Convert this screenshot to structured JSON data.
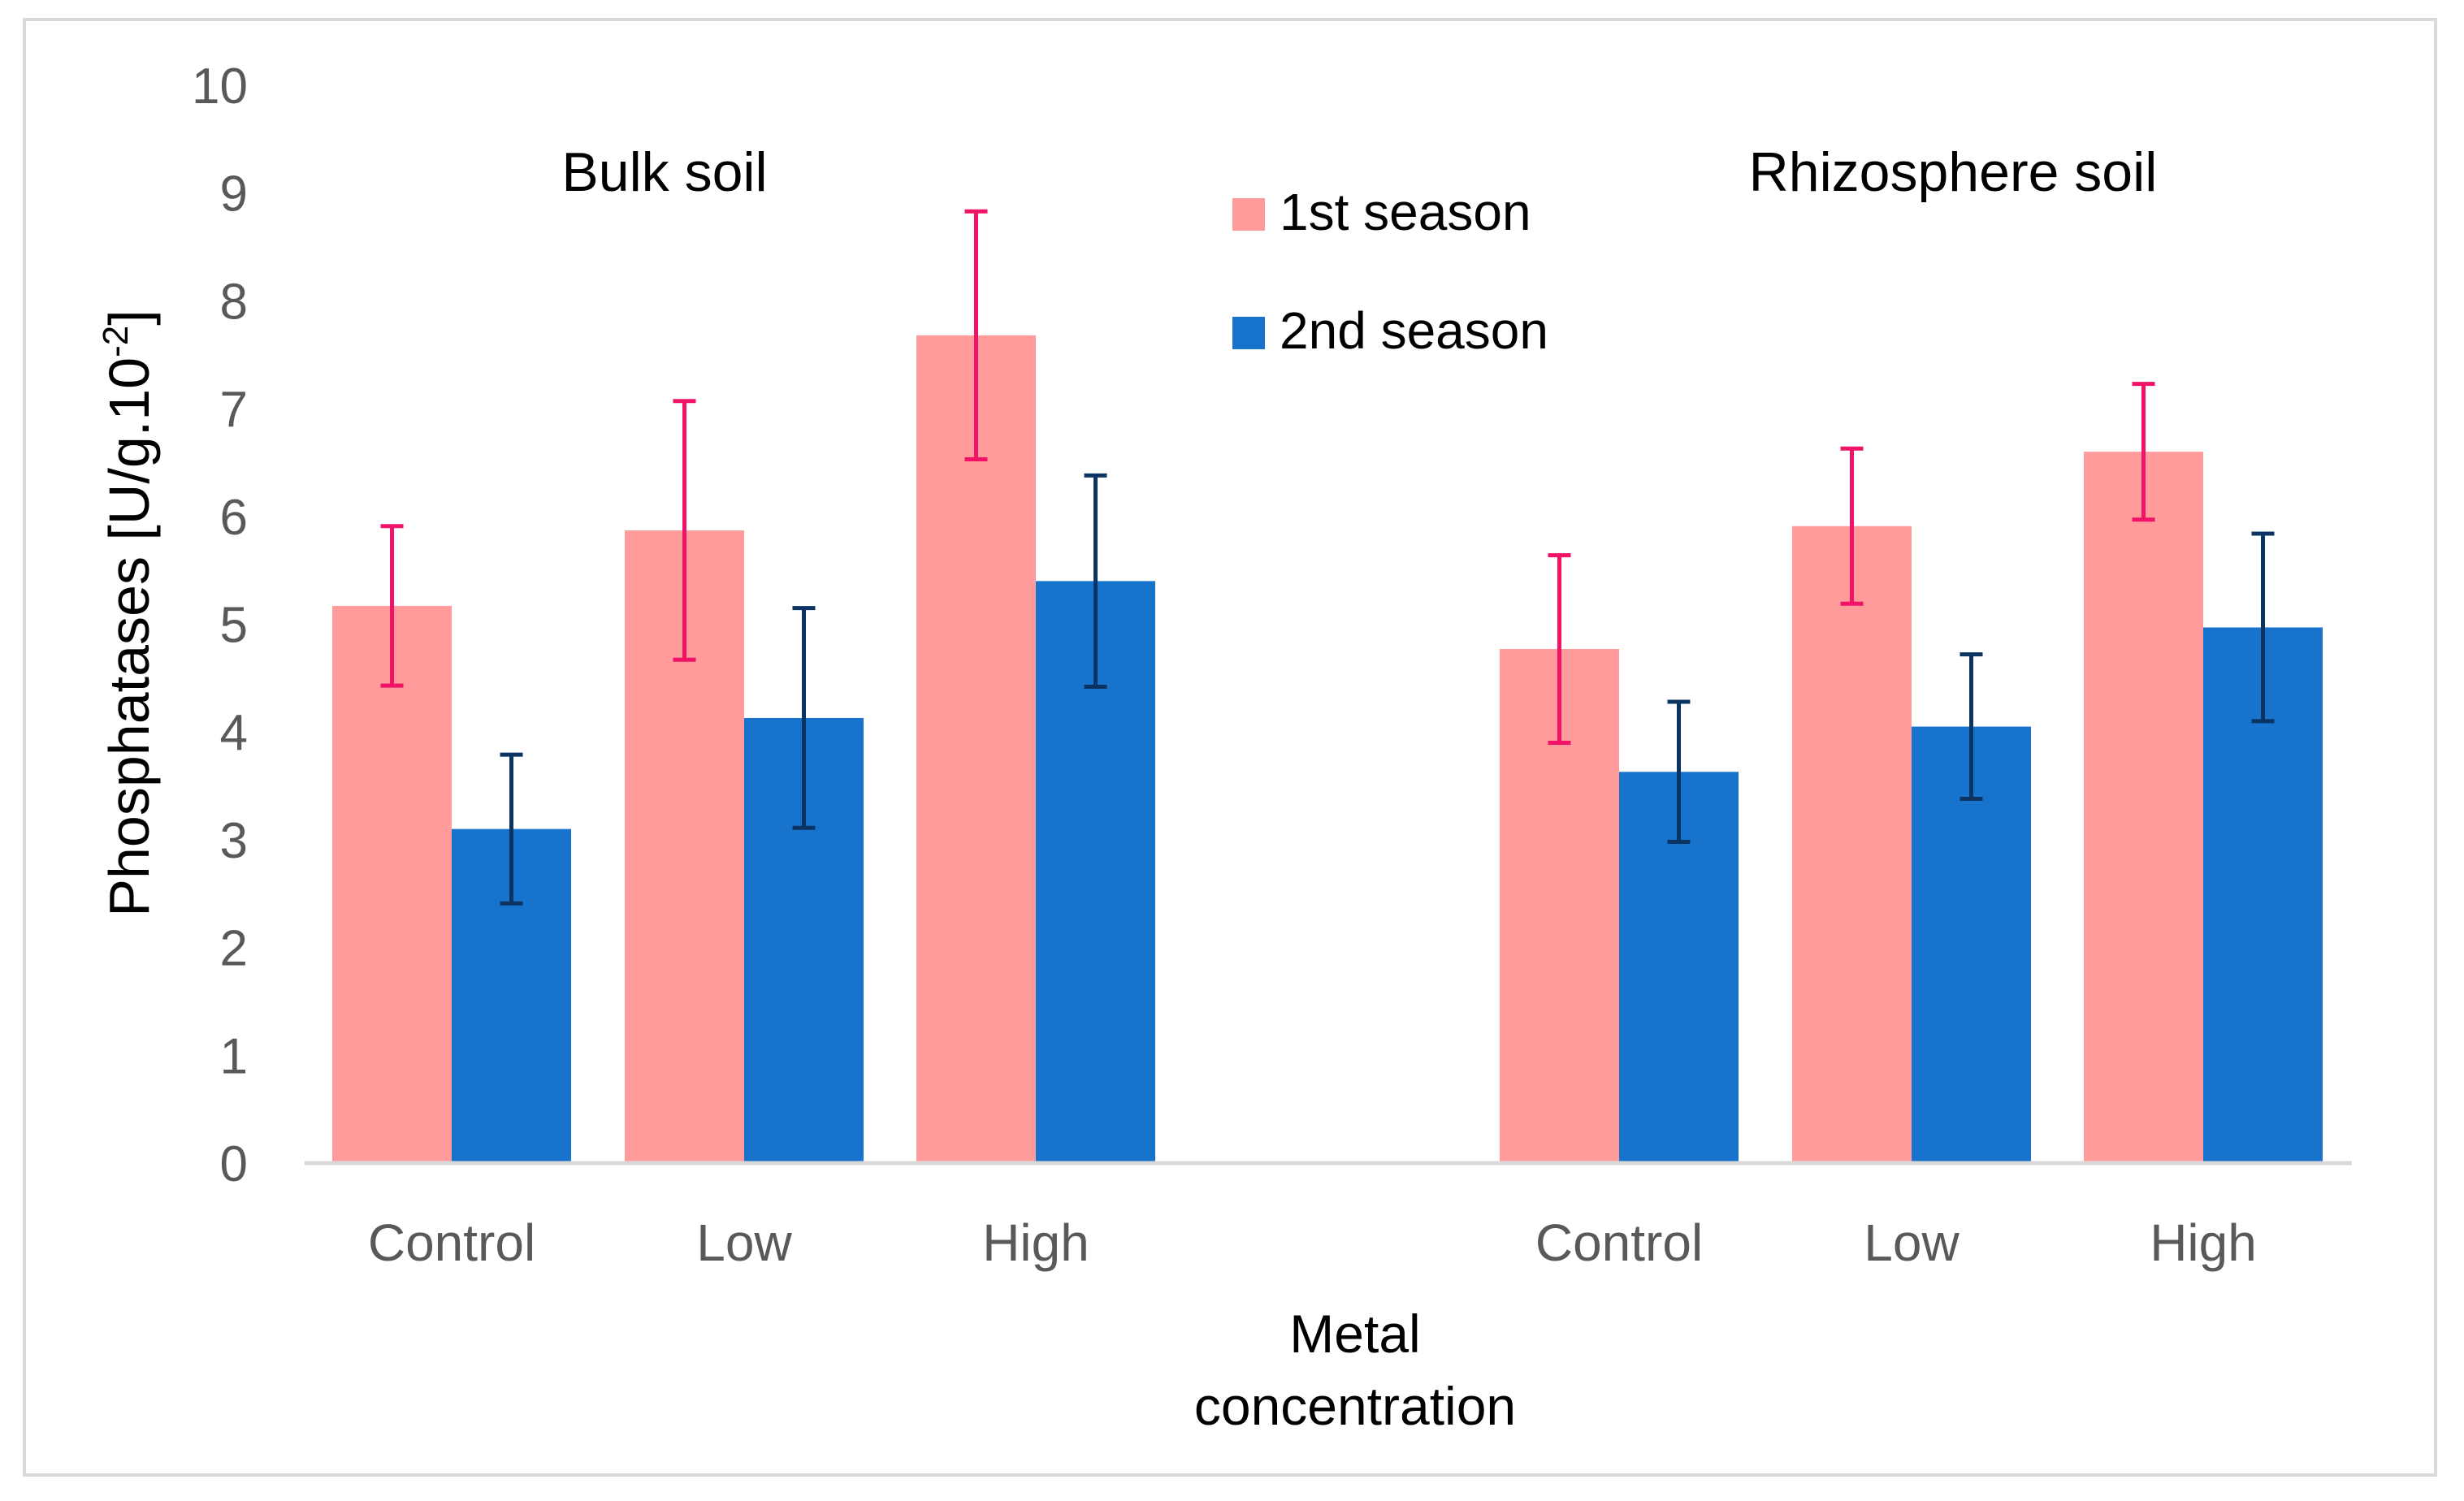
{
  "chart_data": {
    "type": "bar",
    "ylabel": "Phosphatases [U/g.10",
    "ylabel_superscript": "-2",
    "ylabel_close": "]",
    "xlabel_line1": "Metal",
    "xlabel_line2": "concentration",
    "ylim": [
      0,
      10
    ],
    "yticks": [
      "0",
      "1",
      "2",
      "3",
      "4",
      "5",
      "6",
      "7",
      "8",
      "9",
      "10"
    ],
    "grid": false,
    "legend_position": "top-center",
    "groups": [
      {
        "title": "Bulk soil",
        "categories": [
          "Control",
          "Low",
          "High"
        ],
        "series": [
          {
            "name": "1st season",
            "values": [
              5.17,
              5.87,
              7.68
            ],
            "errors": [
              0.74,
              1.2,
              1.15
            ]
          },
          {
            "name": "2nd season",
            "values": [
              3.1,
              4.13,
              5.4
            ],
            "errors": [
              0.69,
              1.02,
              0.98
            ]
          }
        ]
      },
      {
        "title": "Rhizosphere soil",
        "categories": [
          "Control",
          "Low",
          "High"
        ],
        "series": [
          {
            "name": "1st season",
            "values": [
              4.77,
              5.91,
              6.6
            ],
            "errors": [
              0.87,
              0.72,
              0.63
            ]
          },
          {
            "name": "2nd season",
            "values": [
              3.63,
              4.05,
              4.97
            ],
            "errors": [
              0.65,
              0.67,
              0.87
            ]
          }
        ]
      }
    ],
    "legend": [
      "1st season",
      "2nd season"
    ],
    "colors": {
      "series1_bar": "#ff9b9b",
      "series1_error": "#f01367",
      "series2_bar": "#1873cc",
      "series2_error": "#0c3463",
      "axis": "#d9d9d9",
      "tick_text": "#595959",
      "label_text": "#000000"
    }
  }
}
